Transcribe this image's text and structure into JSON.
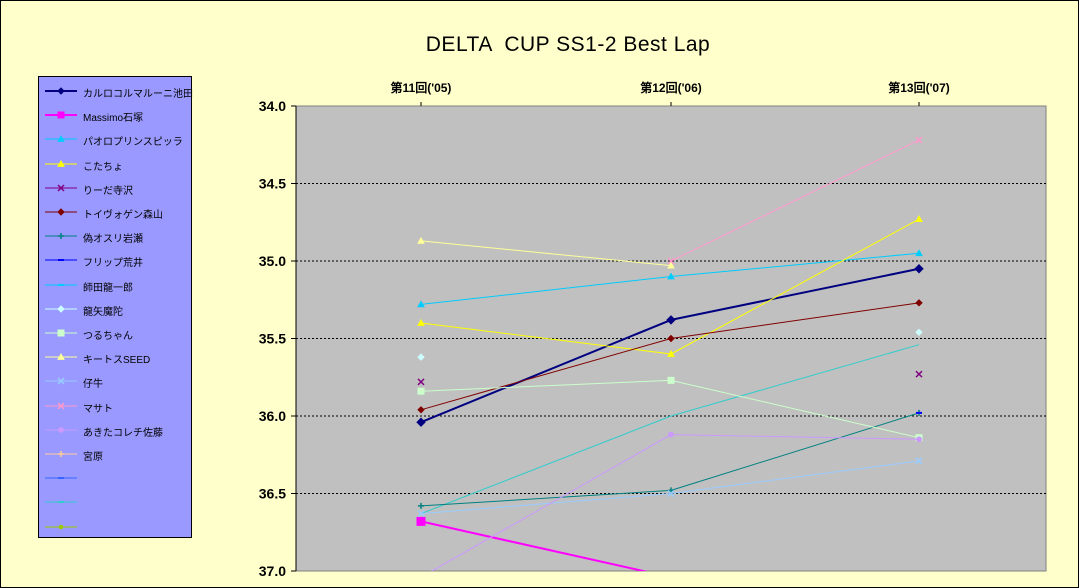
{
  "chart_data": {
    "type": "line",
    "title": "DELTA  CUP SS1-2 Best Lap",
    "categories": [
      "第11回('05)",
      "第12回('06)",
      "第13回('07)"
    ],
    "ylim": [
      34.0,
      37.0
    ],
    "y_inverted": true,
    "y_ticks": [
      "34.0",
      "34.5",
      "35.0",
      "35.5",
      "36.0",
      "36.5",
      "37.0"
    ],
    "grid": "horizontal dashed",
    "legend_position": "left",
    "series": [
      {
        "name": "カルロコルマルーニ池田",
        "color": "#000080",
        "marker": "diamond",
        "values": [
          36.04,
          35.38,
          35.05
        ],
        "bold": true
      },
      {
        "name": "Massimo石塚",
        "color": "#ff00ff",
        "marker": "square",
        "values": [
          36.68,
          37.04,
          null
        ],
        "bold": true
      },
      {
        "name": "パオロプリンスピッラ",
        "color": "#00ccff",
        "marker": "triangle",
        "values": [
          35.28,
          35.1,
          34.95
        ]
      },
      {
        "name": "こたちょ",
        "color": "#ffff00",
        "marker": "triangle",
        "values": [
          35.4,
          35.6,
          34.73
        ]
      },
      {
        "name": "りーだ寺沢",
        "color": "#800080",
        "marker": "x",
        "values": [
          35.78,
          null,
          35.73
        ]
      },
      {
        "name": "トイヴォゲン森山",
        "color": "#800000",
        "marker": "diamond",
        "values": [
          35.96,
          35.5,
          35.27
        ]
      },
      {
        "name": "偽オスリ岩瀬",
        "color": "#008080",
        "marker": "plus",
        "values": [
          36.58,
          36.48,
          35.98
        ]
      },
      {
        "name": "フリップ荒井",
        "color": "#0000ff",
        "marker": "dash",
        "values": [
          null,
          null,
          35.98
        ]
      },
      {
        "name": "師田龍一郎",
        "color": "#00ccff",
        "marker": "dash",
        "values": [
          null,
          null,
          null
        ]
      },
      {
        "name": "龍矢魔陀",
        "color": "#ccffff",
        "marker": "diamond",
        "values": [
          35.62,
          null,
          35.46
        ]
      },
      {
        "name": "つるちゃん",
        "color": "#ccffcc",
        "marker": "square",
        "values": [
          35.84,
          35.77,
          36.14
        ]
      },
      {
        "name": "キートスSEED",
        "color": "#ffff99",
        "marker": "triangle",
        "values": [
          34.87,
          35.03,
          null
        ]
      },
      {
        "name": "仔牛",
        "color": "#99ccff",
        "marker": "x",
        "values": [
          36.63,
          36.5,
          36.29
        ]
      },
      {
        "name": "マサト",
        "color": "#ff99cc",
        "marker": "x",
        "values": [
          null,
          35.0,
          34.22
        ]
      },
      {
        "name": "あきたコレチ佐藤",
        "color": "#cc99ff",
        "marker": "circle",
        "values": [
          37.04,
          36.12,
          36.15
        ]
      },
      {
        "name": "宮原",
        "color": "#ffcc99",
        "marker": "plus",
        "values": [
          null,
          null,
          null
        ]
      },
      {
        "name": "",
        "color": "#3366ff",
        "marker": "dash",
        "values": [
          null,
          null,
          null
        ]
      },
      {
        "name": "",
        "color": "#33cccc",
        "marker": "dash",
        "values": [
          null,
          null,
          null
        ]
      },
      {
        "name": "",
        "color": "#99cc00",
        "marker": "dot",
        "values": [
          null,
          null,
          null
        ]
      }
    ],
    "extra_lines": [
      {
        "color": "#33cccc",
        "values": [
          36.63,
          36.0,
          35.54
        ]
      }
    ]
  }
}
